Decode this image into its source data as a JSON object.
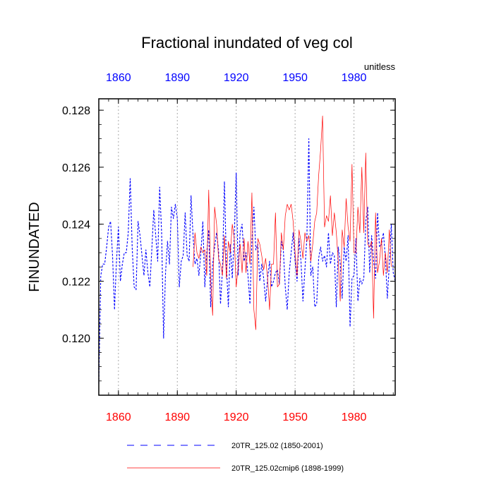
{
  "chart_data": {
    "type": "line",
    "title": "Fractional inundated of veg col",
    "units": "unitless",
    "ylabel": "FINUNDATED",
    "xlabel": "",
    "xlim": [
      1850,
      2001
    ],
    "ylim": [
      0.118,
      0.1284
    ],
    "xticks": [
      1860,
      1890,
      1920,
      1950,
      1980
    ],
    "xtick_labels": [
      "1860",
      "1890",
      "1920",
      "1950",
      "1980"
    ],
    "yticks": [
      0.12,
      0.122,
      0.124,
      0.126,
      0.128
    ],
    "ytick_labels": [
      "0.120",
      "0.122",
      "0.124",
      "0.126",
      "0.128"
    ],
    "bottom_tick_color": "#ff0000",
    "top_tick_color": "#0000ff",
    "grid": "vertical dotted",
    "series": [
      {
        "name": "20TR_125.02 (1850-2001)",
        "color": "#0000ff",
        "style": "dashed",
        "x_start": 1850,
        "values": [
          0.1184,
          0.1222,
          0.1226,
          0.1226,
          0.1232,
          0.1239,
          0.1241,
          0.1229,
          0.121,
          0.1227,
          0.1239,
          0.122,
          0.1226,
          0.123,
          0.123,
          0.1237,
          0.1256,
          0.1232,
          0.1218,
          0.1217,
          0.1241,
          0.1236,
          0.1229,
          0.1222,
          0.1231,
          0.1223,
          0.1218,
          0.1231,
          0.1245,
          0.1236,
          0.1227,
          0.1253,
          0.1237,
          0.12,
          0.1223,
          0.1234,
          0.1226,
          0.1246,
          0.1242,
          0.1247,
          0.1242,
          0.1218,
          0.1227,
          0.1229,
          0.1244,
          0.1229,
          0.1227,
          0.125,
          0.1236,
          0.1226,
          0.1228,
          0.1222,
          0.123,
          0.1241,
          0.1218,
          0.123,
          0.1238,
          0.1211,
          0.1226,
          0.1232,
          0.1237,
          0.1231,
          0.1212,
          0.1224,
          0.1255,
          0.1226,
          0.1211,
          0.1233,
          0.1221,
          0.1236,
          0.1258,
          0.1222,
          0.1237,
          0.124,
          0.1227,
          0.123,
          0.1222,
          0.1212,
          0.1234,
          0.1246,
          0.1231,
          0.1233,
          0.122,
          0.1226,
          0.1221,
          0.1213,
          0.1221,
          0.1227,
          0.1218,
          0.122,
          0.1223,
          0.1224,
          0.1219,
          0.1234,
          0.1231,
          0.1218,
          0.121,
          0.1223,
          0.123,
          0.1237,
          0.1227,
          0.122,
          0.1235,
          0.1227,
          0.1213,
          0.1224,
          0.1235,
          0.127,
          0.1222,
          0.1225,
          0.1211,
          0.1212,
          0.1228,
          0.1232,
          0.1227,
          0.1229,
          0.1225,
          0.1237,
          0.1226,
          0.123,
          0.1229,
          0.1211,
          0.1232,
          0.1226,
          0.1214,
          0.1232,
          0.1227,
          0.1236,
          0.1204,
          0.1221,
          0.1222,
          0.1235,
          0.1213,
          0.1221,
          0.1219,
          0.1221,
          0.1241,
          0.1246,
          0.1223,
          0.1236,
          0.1227,
          0.1221,
          0.1244,
          0.1232,
          0.1233,
          0.1237,
          0.1228,
          0.1214,
          0.1226,
          0.124,
          0.1223,
          0.122
        ]
      },
      {
        "name": "20TR_125.02cmip6 (1898-1999)",
        "color": "#ff0000",
        "style": "solid",
        "x_start": 1898,
        "values": [
          0.1225,
          0.1237,
          0.123,
          0.1228,
          0.1232,
          0.123,
          0.1231,
          0.1222,
          0.1252,
          0.122,
          0.1208,
          0.1246,
          0.124,
          0.1228,
          0.1226,
          0.1222,
          0.1236,
          0.1221,
          0.1234,
          0.123,
          0.124,
          0.1235,
          0.1218,
          0.1225,
          0.1233,
          0.1223,
          0.1235,
          0.1223,
          0.1234,
          0.1226,
          0.1251,
          0.121,
          0.1203,
          0.1235,
          0.1233,
          0.1229,
          0.1224,
          0.1228,
          0.1221,
          0.121,
          0.1226,
          0.1226,
          0.1244,
          0.1218,
          0.1219,
          0.1237,
          0.1231,
          0.1243,
          0.1247,
          0.1245,
          0.1247,
          0.1241,
          0.123,
          0.1222,
          0.1238,
          0.1234,
          0.1228,
          0.1237,
          0.1234,
          0.1236,
          0.1227,
          0.1233,
          0.1241,
          0.1244,
          0.1257,
          0.1266,
          0.1278,
          0.1239,
          0.1243,
          0.1241,
          0.125,
          0.1236,
          0.1244,
          0.1237,
          0.1227,
          0.1213,
          0.1238,
          0.1232,
          0.1249,
          0.1239,
          0.1234,
          0.1261,
          0.123,
          0.123,
          0.1246,
          0.1237,
          0.126,
          0.1237,
          0.1265,
          0.1233,
          0.1232,
          0.1234,
          0.1207,
          0.1244,
          0.1223,
          0.1227,
          0.1235,
          0.1222,
          0.123,
          0.1223,
          0.1238,
          0.1225
        ]
      }
    ],
    "legend": [
      {
        "label": "20TR_125.02 (1850-2001)",
        "color": "#0000ff",
        "style": "dashed"
      },
      {
        "label": "20TR_125.02cmip6 (1898-1999)",
        "color": "#ff0000",
        "style": "solid"
      }
    ]
  }
}
